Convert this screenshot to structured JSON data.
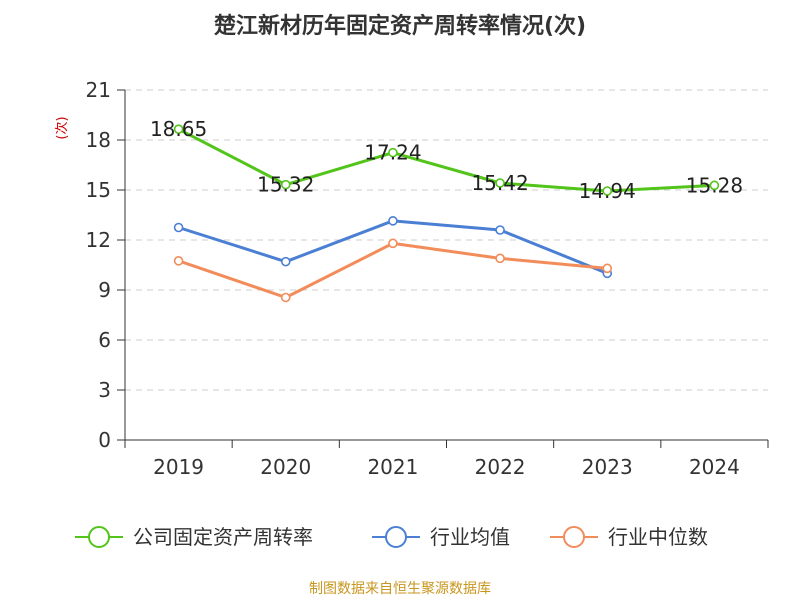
{
  "chart_data": {
    "type": "line",
    "title": "楚江新材历年固定资产周转率情况(次)",
    "ylabel": "(次)",
    "xlabel": "",
    "categories": [
      "2019",
      "2020",
      "2021",
      "2022",
      "2023",
      "2024"
    ],
    "ylim": [
      0,
      21
    ],
    "yticks": [
      0,
      3,
      6,
      9,
      12,
      15,
      18,
      21
    ],
    "grid": true,
    "legend_position": "bottom",
    "series": [
      {
        "name": "公司固定资产周转率",
        "color": "#52c41a",
        "values": [
          18.65,
          15.32,
          17.24,
          15.42,
          14.94,
          15.28
        ],
        "labels": [
          "18.65",
          "15.32",
          "17.24",
          "15.42",
          "14.94",
          "15.28"
        ]
      },
      {
        "name": "行业均值",
        "color": "#4a7fd4",
        "values": [
          12.75,
          10.7,
          13.15,
          12.6,
          10.0,
          null
        ]
      },
      {
        "name": "行业中位数",
        "color": "#f28c5a",
        "values": [
          10.75,
          8.55,
          11.8,
          10.9,
          10.3,
          null
        ]
      }
    ]
  },
  "source": "制图数据来自恒生聚源数据库",
  "colors": {
    "axis": "#333333",
    "grid": "#cccccc",
    "ylabel": "#cc0000",
    "source": "#c8961e"
  }
}
